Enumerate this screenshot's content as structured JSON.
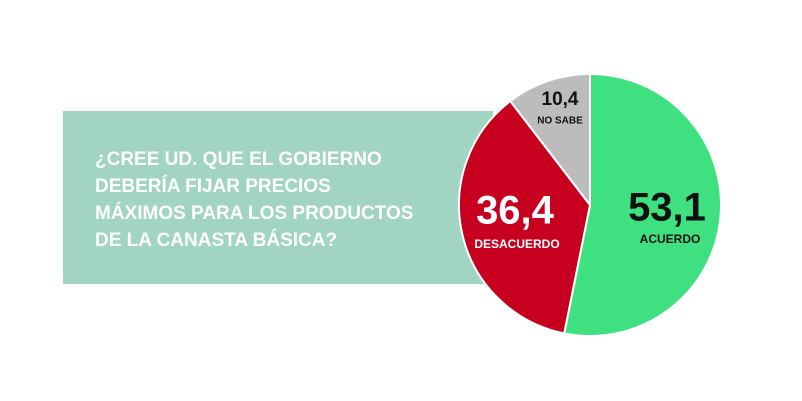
{
  "chart_data": {
    "type": "pie",
    "title": [
      "¿CREE UD. QUE EL GOBIERNO",
      "DEBERÍA FIJAR PRECIOS",
      "MÁXIMOS PARA LOS PRODUCTOS",
      "DE LA CANASTA BÁSICA?"
    ],
    "categories": [
      "ACUERDO",
      "DESACUERDO",
      "NO SABE"
    ],
    "values": [
      53.1,
      36.4,
      10.4
    ],
    "value_labels": [
      "53,1",
      "36,4",
      "10,4"
    ],
    "colors": [
      "#3fe080",
      "#c8001f",
      "#bcbcbc"
    ]
  }
}
